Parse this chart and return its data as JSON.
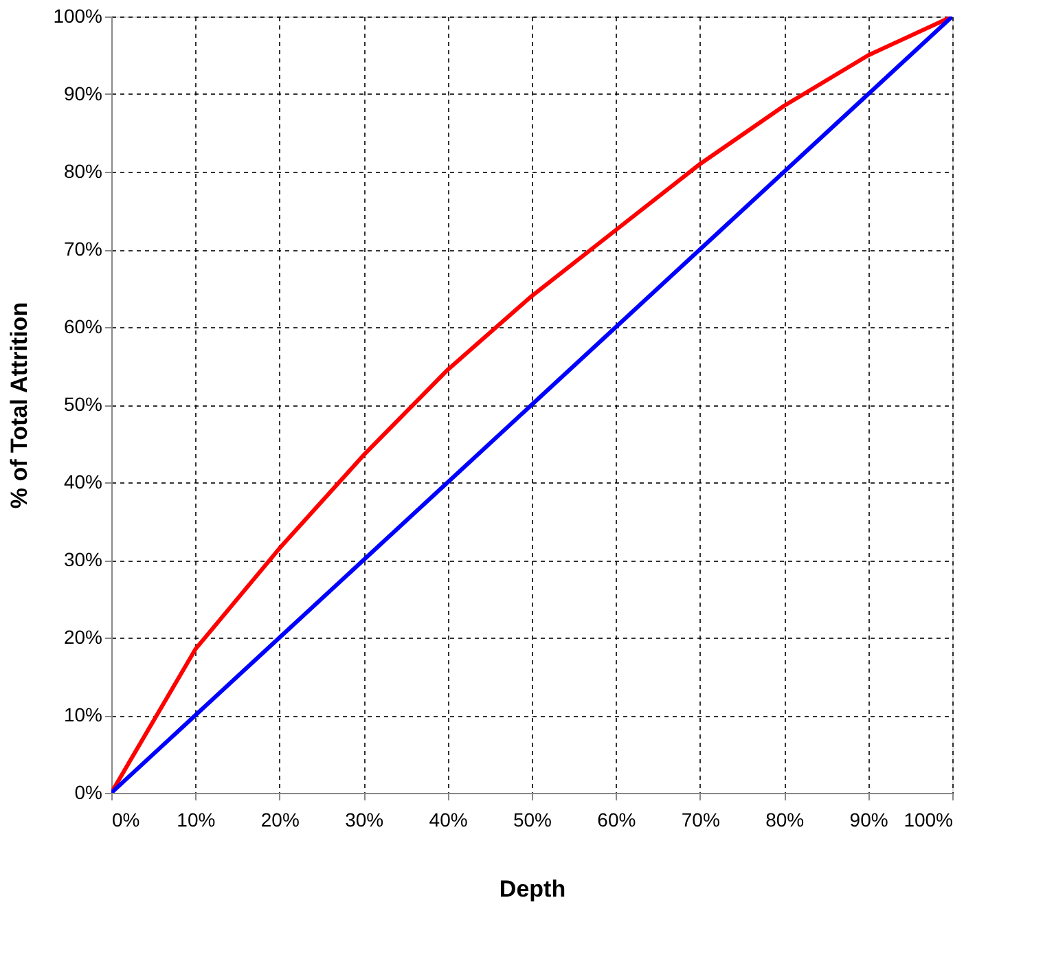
{
  "chart_data": {
    "type": "line",
    "xlabel": "Depth",
    "ylabel": "% of Total Attrition",
    "x": [
      0,
      10,
      20,
      30,
      40,
      50,
      60,
      70,
      80,
      90,
      100
    ],
    "series": [
      {
        "color": "#ff0000",
        "values": [
          0,
          18.5,
          31.5,
          43.5,
          54.5,
          64,
          72.5,
          81,
          88.5,
          95,
          100
        ]
      },
      {
        "color": "#0000ff",
        "values": [
          0,
          10,
          20,
          30,
          40,
          50,
          60,
          70,
          80,
          90,
          100
        ]
      }
    ],
    "xlim": [
      0,
      100
    ],
    "ylim": [
      0,
      100
    ],
    "xticks": [
      {
        "value": 0,
        "label": "0%"
      },
      {
        "value": 10,
        "label": "10%"
      },
      {
        "value": 20,
        "label": "20%"
      },
      {
        "value": 30,
        "label": "30%"
      },
      {
        "value": 40,
        "label": "40%"
      },
      {
        "value": 50,
        "label": "50%"
      },
      {
        "value": 60,
        "label": "60%"
      },
      {
        "value": 70,
        "label": "70%"
      },
      {
        "value": 80,
        "label": "80%"
      },
      {
        "value": 90,
        "label": "90%"
      },
      {
        "value": 100,
        "label": "100%"
      }
    ],
    "yticks": [
      {
        "value": 0,
        "label": "0%"
      },
      {
        "value": 10,
        "label": "10%"
      },
      {
        "value": 20,
        "label": "20%"
      },
      {
        "value": 30,
        "label": "30%"
      },
      {
        "value": 40,
        "label": "40%"
      },
      {
        "value": 50,
        "label": "50%"
      },
      {
        "value": 60,
        "label": "60%"
      },
      {
        "value": 70,
        "label": "70%"
      },
      {
        "value": 80,
        "label": "80%"
      },
      {
        "value": 90,
        "label": "90%"
      },
      {
        "value": 100,
        "label": "100%"
      }
    ],
    "grid": true,
    "legend": false,
    "marker": "none",
    "line_style": "solid"
  }
}
